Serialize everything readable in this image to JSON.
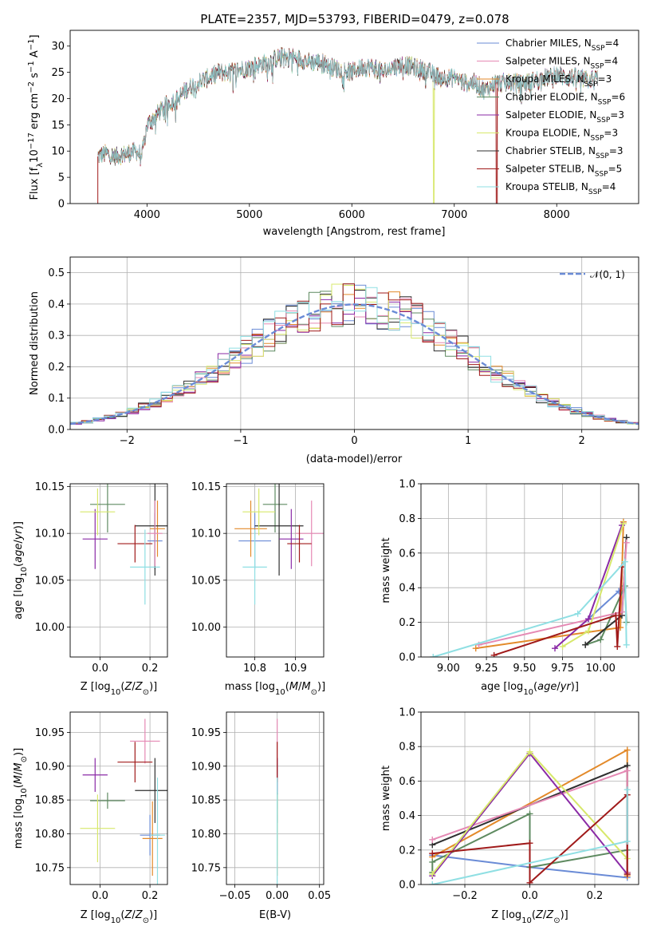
{
  "title": "PLATE=2357, MJD=53793, FIBERID=0479, z=0.078",
  "colors": [
    "#6a8bd6",
    "#e38a2a",
    "#5e8a60",
    "#2f2f2f",
    "#e589b4",
    "#8a2aa6",
    "#d7e86b",
    "#a01a1a",
    "#8fdfe3"
  ],
  "chart_data": [
    {
      "id": "spectrum",
      "type": "line",
      "title": "PLATE=2357, MJD=53793, FIBERID=0479, z=0.078",
      "xlabel": "wavelength [Angstrom, rest frame]",
      "ylabel_html": "Flux [f<tspan baseline-shift=\"sub\" font-size=\"10\">λ</tspan>10<tspan baseline-shift=\"super\" font-size=\"10\">−17</tspan> erg cm<tspan baseline-shift=\"super\" font-size=\"10\">−2</tspan> s<tspan baseline-shift=\"super\" font-size=\"10\">−1</tspan> A<tspan baseline-shift=\"super\" font-size=\"10\">−1</tspan>]",
      "xlim": [
        3250,
        8800
      ],
      "ylim": [
        0,
        33
      ],
      "xticks": [
        4000,
        5000,
        6000,
        7000,
        8000
      ],
      "yticks": [
        0,
        5,
        10,
        15,
        20,
        25,
        30
      ],
      "grid": false,
      "legend_position": "upper right",
      "approx_continuum": {
        "x": [
          3520,
          3600,
          3700,
          3800,
          3900,
          3950,
          4000,
          4100,
          4200,
          4300,
          4400,
          4500,
          4600,
          4700,
          4800,
          4900,
          5000,
          5100,
          5200,
          5300,
          5400,
          5500,
          5600,
          5700,
          5800,
          5900,
          6000,
          6100,
          6200,
          6300,
          6400,
          6500,
          6600,
          6700,
          6800,
          6900,
          7000,
          7100,
          7200,
          7300,
          7400,
          7500,
          7600,
          7700,
          7800,
          7900,
          8000,
          8100,
          8200,
          8300,
          8400
        ],
        "y": [
          9,
          9.5,
          9,
          9.5,
          10,
          9,
          15,
          17,
          19,
          20,
          22,
          23,
          24,
          25,
          25,
          25.5,
          26,
          26.5,
          27,
          28,
          28,
          27.5,
          27,
          27,
          26,
          25.5,
          25,
          26,
          26,
          25,
          26,
          26.5,
          26,
          25.5,
          24.5,
          24,
          24,
          23,
          23,
          21.5,
          23,
          23,
          23,
          23,
          23.5,
          24,
          24.5,
          24,
          24,
          23.5,
          24
        ]
      },
      "legend": [
        {
          "label": "Chabrier MILES, N",
          "sub": "SSP",
          "tail": "=4",
          "color": "#6a8bd6"
        },
        {
          "label": "Salpeter MILES, N",
          "sub": "SSP",
          "tail": "=4",
          "color": "#e589b4"
        },
        {
          "label": "Kroupa MILES, N",
          "sub": "SSP",
          "tail": "=3",
          "color": "#e38a2a"
        },
        {
          "label": "Chabrier ELODIE, N",
          "sub": "SSP",
          "tail": "=6",
          "color": "#5e8a60"
        },
        {
          "label": "Salpeter ELODIE, N",
          "sub": "SSP",
          "tail": "=3",
          "color": "#8a2aa6"
        },
        {
          "label": "Kroupa ELODIE, N",
          "sub": "SSP",
          "tail": "=3",
          "color": "#d7e86b"
        },
        {
          "label": "Chabrier STELIB, N",
          "sub": "SSP",
          "tail": "=3",
          "color": "#2f2f2f"
        },
        {
          "label": "Salpeter STELIB, N",
          "sub": "SSP",
          "tail": "=5",
          "color": "#a01a1a"
        },
        {
          "label": "Kroupa STELIB, N",
          "sub": "SSP",
          "tail": "=4",
          "color": "#8fdfe3"
        }
      ]
    },
    {
      "id": "residuals",
      "type": "histogram",
      "xlabel": "(data-model)/error",
      "ylabel": "Normed distribution",
      "xlim": [
        -2.5,
        2.5
      ],
      "ylim": [
        0,
        0.55
      ],
      "xticks": [
        -2,
        -1,
        0,
        1,
        2
      ],
      "yticks": [
        0.0,
        0.1,
        0.2,
        0.3,
        0.4,
        0.5
      ],
      "grid": true,
      "legend_position": "upper right",
      "reference_label": "𝒩(0, 1)",
      "bin_width": 0.1,
      "approx_bins_start": -2.5
    },
    {
      "id": "age_vs_Z",
      "type": "errorbar",
      "xlabel_html": "Z [log<tspan baseline-shift=\"sub\" font-size=\"10\">10</tspan>(<tspan font-style=\"italic\">Z</tspan>/<tspan font-style=\"italic\">Z</tspan><tspan baseline-shift=\"sub\" font-size=\"10\">⊙</tspan>)]",
      "ylabel_html": "age  [log<tspan baseline-shift=\"sub\" font-size=\"10\">10</tspan>(<tspan font-style=\"italic\">age</tspan>/<tspan font-style=\"italic\">yr</tspan>)]",
      "xlim": [
        -0.12,
        0.27
      ],
      "ylim": [
        9.968,
        10.153
      ],
      "xticks": [
        0.0,
        0.2
      ],
      "yticks": [
        10.0,
        10.05,
        10.1,
        10.15
      ],
      "grid": true,
      "points": [
        {
          "x": 0.22,
          "xerr": 0.03,
          "y": 10.092,
          "yerr": 0.03,
          "color": "#6a8bd6"
        },
        {
          "x": 0.23,
          "xerr": 0.03,
          "y": 10.105,
          "yerr": 0.03,
          "color": "#e38a2a"
        },
        {
          "x": 0.03,
          "xerr": 0.07,
          "y": 10.131,
          "yerr": 0.03,
          "color": "#5e8a60"
        },
        {
          "x": 0.22,
          "xerr": 0.08,
          "y": 10.108,
          "yerr": 0.053,
          "color": "#2f2f2f"
        },
        {
          "x": 0.22,
          "xerr": 0.03,
          "y": 10.1,
          "yerr": 0.035,
          "color": "#e589b4"
        },
        {
          "x": -0.02,
          "xerr": 0.05,
          "y": 10.094,
          "yerr": 0.032,
          "color": "#8a2aa6"
        },
        {
          "x": -0.01,
          "xerr": 0.07,
          "y": 10.123,
          "yerr": 0.025,
          "color": "#d7e86b"
        },
        {
          "x": 0.14,
          "xerr": 0.07,
          "y": 10.089,
          "yerr": 0.02,
          "color": "#a01a1a"
        },
        {
          "x": 0.18,
          "xerr": 0.06,
          "y": 10.064,
          "yerr": 0.04,
          "color": "#8fdfe3"
        }
      ]
    },
    {
      "id": "age_vs_mass",
      "type": "errorbar",
      "xlabel_html": "mass [log<tspan baseline-shift=\"sub\" font-size=\"10\">10</tspan>(<tspan font-style=\"italic\">M</tspan>/<tspan font-style=\"italic\">M</tspan><tspan baseline-shift=\"sub\" font-size=\"10\">⊙</tspan>)]",
      "xlim": [
        10.73,
        10.97
      ],
      "ylim": [
        9.968,
        10.153
      ],
      "xticks": [
        10.8,
        10.9
      ],
      "yticks": [
        10.0,
        10.05,
        10.1,
        10.15
      ],
      "grid": true,
      "points": [
        {
          "x": 10.8,
          "xerr": 0.04,
          "y": 10.092,
          "yerr": 0.03,
          "color": "#6a8bd6"
        },
        {
          "x": 10.79,
          "xerr": 0.04,
          "y": 10.105,
          "yerr": 0.03,
          "color": "#e38a2a"
        },
        {
          "x": 10.85,
          "xerr": 0.03,
          "y": 10.131,
          "yerr": 0.03,
          "color": "#5e8a60"
        },
        {
          "x": 10.86,
          "xerr": 0.06,
          "y": 10.108,
          "yerr": 0.053,
          "color": "#2f2f2f"
        },
        {
          "x": 10.94,
          "xerr": 0.04,
          "y": 10.1,
          "yerr": 0.035,
          "color": "#e589b4"
        },
        {
          "x": 10.89,
          "xerr": 0.03,
          "y": 10.094,
          "yerr": 0.032,
          "color": "#8a2aa6"
        },
        {
          "x": 10.81,
          "xerr": 0.04,
          "y": 10.123,
          "yerr": 0.025,
          "color": "#d7e86b"
        },
        {
          "x": 10.91,
          "xerr": 0.03,
          "y": 10.089,
          "yerr": 0.02,
          "color": "#a01a1a"
        },
        {
          "x": 10.8,
          "xerr": 0.03,
          "y": 10.064,
          "yerr": 0.04,
          "color": "#8fdfe3"
        }
      ]
    },
    {
      "id": "weight_vs_age",
      "type": "line",
      "xlabel_html": "age  [log<tspan baseline-shift=\"sub\" font-size=\"10\">10</tspan>(<tspan font-style=\"italic\">age</tspan>/<tspan font-style=\"italic\">yr</tspan>)]",
      "ylabel": "mass weight",
      "xlim": [
        8.82,
        10.25
      ],
      "ylim": [
        0,
        1.0
      ],
      "xticks": [
        9.0,
        9.25,
        9.5,
        9.75,
        10.0
      ],
      "xticklabels": [
        "9.00",
        "9.25",
        "9.50",
        "9.75",
        "10.00"
      ],
      "yticks": [
        0.0,
        0.2,
        0.4,
        0.6,
        0.8,
        1.0
      ],
      "grid": true,
      "series": [
        {
          "color": "#6a8bd6",
          "x": [
            9.92,
            10.12,
            10.15
          ],
          "y": [
            0.22,
            0.38,
            0.4
          ]
        },
        {
          "color": "#e38a2a",
          "x": [
            9.18,
            10.13,
            10.15
          ],
          "y": [
            0.05,
            0.17,
            0.78
          ]
        },
        {
          "color": "#5e8a60",
          "x": [
            9.9,
            10.0,
            10.16,
            10.17
          ],
          "y": [
            0.07,
            0.1,
            0.41,
            0.2
          ]
        },
        {
          "color": "#2f2f2f",
          "x": [
            9.9,
            10.14,
            10.17
          ],
          "y": [
            0.07,
            0.24,
            0.69
          ]
        },
        {
          "color": "#e589b4",
          "x": [
            9.2,
            10.14,
            10.17
          ],
          "y": [
            0.07,
            0.26,
            0.66
          ]
        },
        {
          "color": "#8a2aa6",
          "x": [
            9.7,
            9.92,
            10.14
          ],
          "y": [
            0.05,
            0.22,
            0.76
          ]
        },
        {
          "color": "#d7e86b",
          "x": [
            9.75,
            9.92,
            10.15
          ],
          "y": [
            0.06,
            0.15,
            0.77
          ]
        },
        {
          "color": "#a01a1a",
          "x": [
            9.3,
            10.1,
            10.11,
            10.14
          ],
          "y": [
            0.01,
            0.24,
            0.06,
            0.52
          ]
        },
        {
          "color": "#8fdfe3",
          "x": [
            8.9,
            9.85,
            10.16,
            10.17
          ],
          "y": [
            0.0,
            0.25,
            0.55,
            0.07
          ]
        }
      ]
    },
    {
      "id": "mass_vs_Z",
      "type": "errorbar",
      "xlabel_html": "Z [log<tspan baseline-shift=\"sub\" font-size=\"10\">10</tspan>(<tspan font-style=\"italic\">Z</tspan>/<tspan font-style=\"italic\">Z</tspan><tspan baseline-shift=\"sub\" font-size=\"10\">⊙</tspan>)]",
      "ylabel_html": "mass [log<tspan baseline-shift=\"sub\" font-size=\"10\">10</tspan>(<tspan font-style=\"italic\">M</tspan>/<tspan font-style=\"italic\">M</tspan><tspan baseline-shift=\"sub\" font-size=\"10\">⊙</tspan>)]",
      "xlim": [
        -0.12,
        0.27
      ],
      "ylim": [
        10.725,
        10.98
      ],
      "xticks": [
        0.0,
        0.2
      ],
      "yticks": [
        10.75,
        10.8,
        10.85,
        10.9,
        10.95
      ],
      "grid": true,
      "points": [
        {
          "x": 0.2,
          "xerr": 0.04,
          "y": 10.798,
          "yerr": 0.03,
          "color": "#6a8bd6"
        },
        {
          "x": 0.21,
          "xerr": 0.04,
          "y": 10.793,
          "yerr": 0.055,
          "color": "#e38a2a"
        },
        {
          "x": 0.03,
          "xerr": 0.07,
          "y": 10.849,
          "yerr": 0.012,
          "color": "#5e8a60"
        },
        {
          "x": 0.22,
          "xerr": 0.08,
          "y": 10.864,
          "yerr": 0.048,
          "color": "#2f2f2f"
        },
        {
          "x": 0.18,
          "xerr": 0.06,
          "y": 10.937,
          "yerr": 0.033,
          "color": "#e589b4"
        },
        {
          "x": -0.02,
          "xerr": 0.05,
          "y": 10.887,
          "yerr": 0.025,
          "color": "#8a2aa6"
        },
        {
          "x": -0.01,
          "xerr": 0.07,
          "y": 10.808,
          "yerr": 0.05,
          "color": "#d7e86b"
        },
        {
          "x": 0.14,
          "xerr": 0.07,
          "y": 10.906,
          "yerr": 0.03,
          "color": "#a01a1a"
        },
        {
          "x": 0.23,
          "xerr": 0.03,
          "y": 10.798,
          "yerr": 0.085,
          "color": "#8fdfe3"
        }
      ]
    },
    {
      "id": "mass_vs_ebv",
      "type": "errorbar",
      "xlabel": "E(B-V)",
      "xlim": [
        -0.06,
        0.055
      ],
      "ylim": [
        10.725,
        10.98
      ],
      "xticks": [
        -0.05,
        0.0,
        0.05
      ],
      "xticklabels": [
        "−0.05",
        "0.00",
        "0.05"
      ],
      "yticks": [
        10.75,
        10.8,
        10.85,
        10.9,
        10.95
      ],
      "grid": true,
      "points": [
        {
          "x": 0,
          "xerr": 0,
          "y": 10.798,
          "yerr": 0.03,
          "color": "#6a8bd6"
        },
        {
          "x": 0,
          "xerr": 0,
          "y": 10.793,
          "yerr": 0.055,
          "color": "#e38a2a"
        },
        {
          "x": 0,
          "xerr": 0,
          "y": 10.849,
          "yerr": 0.012,
          "color": "#5e8a60"
        },
        {
          "x": 0,
          "xerr": 0,
          "y": 10.864,
          "yerr": 0.048,
          "color": "#2f2f2f"
        },
        {
          "x": 0,
          "xerr": 0,
          "y": 10.937,
          "yerr": 0.033,
          "color": "#e589b4"
        },
        {
          "x": 0,
          "xerr": 0,
          "y": 10.887,
          "yerr": 0.025,
          "color": "#8a2aa6"
        },
        {
          "x": 0,
          "xerr": 0,
          "y": 10.808,
          "yerr": 0.05,
          "color": "#d7e86b"
        },
        {
          "x": 0,
          "xerr": 0,
          "y": 10.906,
          "yerr": 0.03,
          "color": "#a01a1a"
        },
        {
          "x": 0,
          "xerr": 0,
          "y": 10.798,
          "yerr": 0.085,
          "color": "#8fdfe3"
        }
      ]
    },
    {
      "id": "weight_vs_Z",
      "type": "line",
      "xlabel_html": "Z [log<tspan baseline-shift=\"sub\" font-size=\"10\">10</tspan>(<tspan font-style=\"italic\">Z</tspan>/<tspan font-style=\"italic\">Z</tspan><tspan baseline-shift=\"sub\" font-size=\"10\">⊙</tspan>)]",
      "ylabel": "mass weight",
      "xlim": [
        -0.335,
        0.335
      ],
      "ylim": [
        0,
        1.0
      ],
      "xticks": [
        -0.2,
        0.0,
        0.2
      ],
      "xticklabels": [
        "−0.2",
        "0.0",
        "0.2"
      ],
      "yticks": [
        0.0,
        0.2,
        0.4,
        0.6,
        0.8,
        1.0
      ],
      "grid": true,
      "series": [
        {
          "color": "#6a8bd6",
          "x": [
            -0.3,
            0.0,
            0.3
          ],
          "y": [
            0.17,
            0.1,
            0.04
          ]
        },
        {
          "color": "#e38a2a",
          "x": [
            -0.3,
            0.3,
            0.3
          ],
          "y": [
            0.16,
            0.78,
            0.05
          ]
        },
        {
          "color": "#5e8a60",
          "x": [
            -0.3,
            -0.3,
            0.0,
            0.0,
            0.3
          ],
          "y": [
            0.07,
            0.13,
            0.41,
            0.1,
            0.2
          ]
        },
        {
          "color": "#2f2f2f",
          "x": [
            -0.3,
            0.3,
            0.3
          ],
          "y": [
            0.23,
            0.69,
            0.07
          ]
        },
        {
          "color": "#e589b4",
          "x": [
            -0.3,
            0.3,
            0.3
          ],
          "y": [
            0.26,
            0.66,
            0.07
          ]
        },
        {
          "color": "#8a2aa6",
          "x": [
            -0.3,
            0.0,
            0.3
          ],
          "y": [
            0.05,
            0.76,
            0.06
          ]
        },
        {
          "color": "#d7e86b",
          "x": [
            -0.3,
            0.0,
            0.3
          ],
          "y": [
            0.06,
            0.77,
            0.15
          ]
        },
        {
          "color": "#a01a1a",
          "x": [
            -0.3,
            0.0,
            0.0,
            0.3,
            0.3
          ],
          "y": [
            0.18,
            0.24,
            0.01,
            0.52,
            0.06
          ]
        },
        {
          "color": "#8fdfe3",
          "x": [
            -0.3,
            0.3,
            0.3
          ],
          "y": [
            0.0,
            0.25,
            0.55
          ]
        }
      ]
    }
  ]
}
